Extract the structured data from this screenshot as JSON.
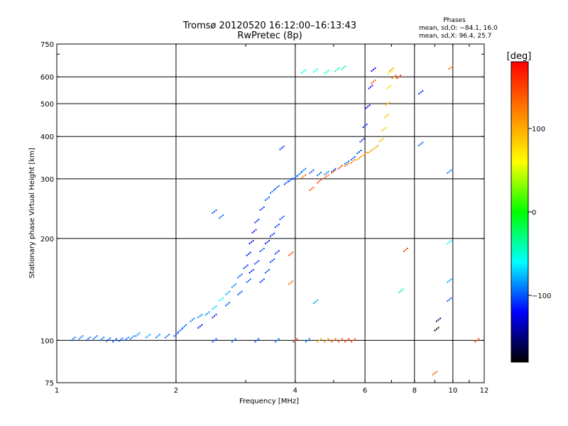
{
  "chart_data": {
    "type": "scatter",
    "title": "Tromsø 20120520 16:12:00–16:13:43",
    "subtitle": "RwPretec (8p)",
    "xlabel": "Frequency [MHz]",
    "ylabel": "Stationary phase Virtual Height [km]",
    "x_scale": "log",
    "y_scale": "log",
    "xlim": [
      1,
      12
    ],
    "ylim": [
      75,
      750
    ],
    "x_ticks": [
      1,
      2,
      4,
      6,
      8,
      10,
      12
    ],
    "y_ticks": [
      75,
      100,
      200,
      300,
      400,
      500,
      600,
      750
    ],
    "grid": true,
    "phases_box": {
      "title": "Phases",
      "line1": "mean, sd,O: −84.1, 16.0",
      "line2": "mean, sd,X:  96.4, 25.7"
    },
    "colorbar": {
      "label": "[deg]",
      "range": [
        -180,
        180
      ],
      "ticks": [
        100,
        0,
        -100
      ],
      "colors": [
        "#ff0000",
        "#ff8000",
        "#ffff00",
        "#00ff00",
        "#00ffff",
        "#0000ff",
        "#000000"
      ]
    },
    "series": [
      {
        "points": [
          [
            1.1,
            101,
            -95
          ],
          [
            1.15,
            102,
            -90
          ],
          [
            1.2,
            101,
            -100
          ],
          [
            1.25,
            102,
            -95
          ],
          [
            1.3,
            101,
            -92
          ],
          [
            1.35,
            100.5,
            -98
          ],
          [
            1.4,
            100,
            -100
          ],
          [
            1.45,
            100.5,
            -96
          ],
          [
            1.5,
            101,
            -94
          ],
          [
            1.55,
            102,
            -90
          ],
          [
            1.6,
            104,
            -85
          ],
          [
            1.7,
            103,
            -80
          ],
          [
            1.8,
            103,
            -90
          ],
          [
            1.9,
            103,
            -95
          ],
          [
            2.0,
            104,
            -100
          ],
          [
            2.05,
            107,
            -98
          ],
          [
            2.1,
            110,
            -95
          ],
          [
            2.2,
            115,
            -92
          ],
          [
            2.3,
            118,
            -90
          ],
          [
            2.4,
            120,
            -85
          ],
          [
            2.5,
            125,
            -70
          ],
          [
            2.6,
            132,
            -60
          ],
          [
            2.7,
            138,
            -80
          ],
          [
            2.8,
            145,
            -90
          ],
          [
            2.9,
            155,
            -100
          ],
          [
            3.0,
            165,
            -110
          ],
          [
            3.05,
            180,
            -115
          ],
          [
            3.1,
            195,
            -120
          ],
          [
            3.15,
            210,
            -115
          ],
          [
            3.2,
            225,
            -110
          ],
          [
            3.3,
            245,
            -105
          ],
          [
            3.4,
            262,
            -100
          ],
          [
            3.5,
            275,
            -95
          ],
          [
            3.6,
            283,
            -100
          ],
          [
            3.8,
            292,
            -110
          ],
          [
            3.9,
            298,
            -100
          ],
          [
            4.0,
            302,
            -95
          ],
          [
            4.1,
            310,
            -90
          ],
          [
            4.2,
            318,
            -95
          ],
          [
            4.4,
            315,
            -100
          ],
          [
            4.6,
            310,
            -95
          ],
          [
            4.8,
            312,
            -90
          ],
          [
            5.0,
            318,
            -100
          ],
          [
            5.2,
            325,
            -105
          ],
          [
            5.4,
            335,
            -95
          ],
          [
            5.6,
            345,
            -100
          ],
          [
            5.8,
            360,
            -105
          ],
          [
            5.9,
            390,
            -110
          ],
          [
            6.0,
            430,
            -115
          ],
          [
            6.1,
            490,
            -120
          ],
          [
            6.2,
            560,
            -115
          ],
          [
            6.3,
            630,
            -120
          ],
          [
            3.05,
            150,
            -100
          ],
          [
            3.1,
            160,
            -110
          ],
          [
            3.2,
            170,
            -105
          ],
          [
            3.3,
            185,
            -100
          ],
          [
            3.4,
            195,
            -115
          ],
          [
            3.5,
            205,
            -110
          ],
          [
            3.6,
            218,
            -105
          ],
          [
            3.7,
            230,
            -100
          ],
          [
            3.3,
            150,
            -110
          ],
          [
            3.4,
            160,
            -100
          ],
          [
            3.5,
            172,
            -105
          ],
          [
            3.6,
            182,
            -110
          ],
          [
            2.3,
            110,
            -120
          ],
          [
            2.5,
            118,
            -110
          ],
          [
            2.7,
            128,
            -100
          ],
          [
            2.9,
            138,
            -105
          ],
          [
            4.2,
            622,
            -60
          ],
          [
            4.5,
            626,
            -55
          ],
          [
            4.8,
            620,
            -50
          ],
          [
            5.1,
            630,
            -45
          ],
          [
            5.3,
            638,
            -40
          ],
          [
            2.5,
            100,
            -100
          ],
          [
            2.8,
            100,
            -95
          ],
          [
            3.2,
            100,
            -100
          ],
          [
            3.6,
            100,
            -95
          ],
          [
            4.0,
            100,
            -100
          ],
          [
            4.3,
            100,
            -90
          ],
          [
            3.7,
            370,
            -110
          ],
          [
            2.5,
            240,
            -100
          ],
          [
            2.6,
            232,
            -95
          ]
        ]
      },
      {
        "points": [
          [
            4.2,
            305,
            130
          ],
          [
            4.4,
            280,
            140
          ],
          [
            4.6,
            295,
            145
          ],
          [
            4.8,
            305,
            140
          ],
          [
            5.0,
            315,
            135
          ],
          [
            5.2,
            325,
            130
          ],
          [
            5.4,
            330,
            125
          ],
          [
            5.6,
            338,
            120
          ],
          [
            5.8,
            345,
            115
          ],
          [
            6.0,
            355,
            110
          ],
          [
            6.2,
            362,
            105
          ],
          [
            6.4,
            372,
            100
          ],
          [
            6.6,
            390,
            95
          ],
          [
            6.7,
            420,
            90
          ],
          [
            6.8,
            460,
            88
          ],
          [
            6.85,
            500,
            85
          ],
          [
            6.9,
            560,
            80
          ],
          [
            6.95,
            620,
            75
          ],
          [
            4.8,
            100,
            120
          ],
          [
            5.0,
            100,
            130
          ],
          [
            5.2,
            100,
            140
          ],
          [
            5.4,
            100,
            150
          ],
          [
            5.6,
            100,
            145
          ],
          [
            4.0,
            100,
            140
          ],
          [
            4.6,
            100,
            100
          ],
          [
            6.3,
            580,
            140
          ],
          [
            7.0,
            630,
            100
          ],
          [
            7.1,
            600,
            130
          ],
          [
            7.3,
            600,
            150
          ],
          [
            3.9,
            180,
            150
          ],
          [
            3.9,
            148,
            130
          ],
          [
            9.1,
            108,
            -180
          ],
          [
            9.2,
            115,
            -160
          ],
          [
            8.3,
            380,
            -100
          ],
          [
            8.3,
            540,
            -110
          ],
          [
            9.8,
            315,
            -90
          ],
          [
            9.8,
            150,
            -80
          ],
          [
            9.8,
            132,
            -100
          ],
          [
            9.8,
            195,
            -60
          ],
          [
            9.9,
            640,
            130
          ],
          [
            11.5,
            100,
            150
          ],
          [
            7.6,
            185,
            150
          ],
          [
            4.5,
            130,
            -80
          ],
          [
            7.4,
            140,
            -30
          ],
          [
            9.0,
            80,
            140
          ]
        ]
      }
    ]
  }
}
